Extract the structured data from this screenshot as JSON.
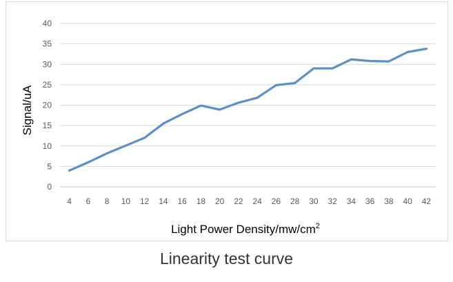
{
  "caption": "Linearity test curve",
  "chart_data": {
    "type": "line",
    "x": [
      4,
      6,
      8,
      10,
      12,
      14,
      16,
      18,
      20,
      22,
      24,
      26,
      28,
      30,
      32,
      34,
      36,
      38,
      40,
      42
    ],
    "series": [
      {
        "values": [
          4.0,
          6.0,
          8.2,
          10.1,
          12.0,
          15.5,
          17.8,
          19.9,
          18.9,
          20.6,
          21.8,
          24.9,
          25.4,
          29.0,
          29.0,
          31.2,
          30.8,
          30.7,
          33.0,
          33.8
        ]
      }
    ],
    "xlabel": "Light Power Density/mw/cm",
    "xlabel_superscript": "2",
    "ylabel": "Signal/uA",
    "yticks": [
      0,
      5,
      10,
      15,
      20,
      25,
      30,
      35,
      40
    ],
    "ylim": [
      0,
      40
    ],
    "grid": "horizontal",
    "legend": "none",
    "line_color": "#5b8fc9"
  }
}
